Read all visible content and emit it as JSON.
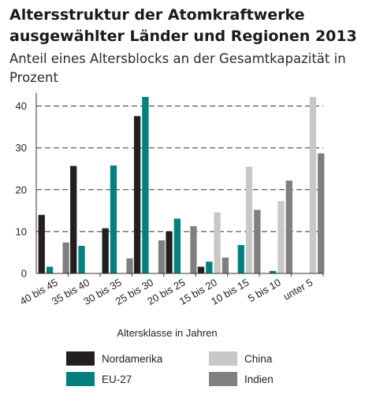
{
  "header": {
    "title": "Altersstruktur der Atomkraftwerke ausgewählter Länder und Regionen 2013",
    "subtitle": "Anteil eines Altersblocks an der Gesamtkapazität in Prozent"
  },
  "chart_data": {
    "type": "bar",
    "title": "Altersstruktur der Atomkraftwerke ausgewählter Länder und Regionen 2013",
    "subtitle": "Anteil eines Altersblocks an der Gesamtkapazität in Prozent",
    "xlabel": "Altersklasse in Jahren",
    "ylabel": "",
    "ylim": [
      0,
      42
    ],
    "yticks": [
      0,
      10,
      20,
      30,
      40
    ],
    "grid": "horizontal-dashed",
    "categories": [
      "40 bis 45",
      "35 bis 40",
      "30 bis 35",
      "25 bis 30",
      "20 bis 25",
      "15 bis 20",
      "10 bis 15",
      "5 bis 10",
      "unter 5"
    ],
    "series": [
      {
        "name": "Nordamerika",
        "color": "#231f20",
        "values": [
          14,
          25.7,
          10.8,
          37.6,
          10,
          1.6,
          0,
          0,
          0
        ]
      },
      {
        "name": "EU-27",
        "color": "#00807f",
        "values": [
          1.6,
          6.6,
          25.8,
          42.2,
          13.1,
          2.8,
          6.8,
          0.6,
          0
        ]
      },
      {
        "name": "China",
        "color": "#c8c8c8",
        "values": [
          0,
          0,
          0,
          0,
          0,
          14.6,
          25.5,
          17.3,
          42.2
        ]
      },
      {
        "name": "Indien",
        "color": "#7f7f7f",
        "values": [
          7.4,
          0,
          3.6,
          7.9,
          11.3,
          3.8,
          15.2,
          22.2,
          28.7
        ]
      }
    ],
    "legend_position": "bottom"
  }
}
